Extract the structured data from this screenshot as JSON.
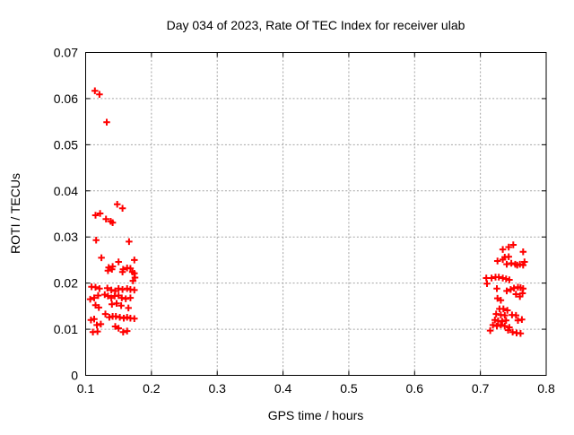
{
  "figure": {
    "background": "#ffffff"
  },
  "chart_data": {
    "type": "scatter",
    "title": "Day 034 of 2023, Rate Of TEC Index for receiver ulab",
    "xlabel": "GPS time / hours",
    "ylabel": "ROTI / TECUs",
    "xlim": [
      0.1,
      0.8
    ],
    "ylim": [
      0,
      0.07
    ],
    "xticks": [
      0.1,
      0.2,
      0.3,
      0.4,
      0.5,
      0.6,
      0.7,
      0.8
    ],
    "yticks": [
      0,
      0.01,
      0.02,
      0.03,
      0.04,
      0.05,
      0.06,
      0.07
    ],
    "grid": true,
    "legend": "none",
    "marker_shape": "plus",
    "marker_color": "#ff0000",
    "grid_color": "#a4a4a4",
    "axis_color": "#000000",
    "points": [
      [
        0.114,
        0.0617
      ],
      [
        0.121,
        0.0609
      ],
      [
        0.132,
        0.0549
      ],
      [
        0.148,
        0.0371
      ],
      [
        0.156,
        0.0362
      ],
      [
        0.115,
        0.0347
      ],
      [
        0.122,
        0.0351
      ],
      [
        0.131,
        0.0339
      ],
      [
        0.138,
        0.0334
      ],
      [
        0.141,
        0.0331
      ],
      [
        0.116,
        0.0293
      ],
      [
        0.166,
        0.029
      ],
      [
        0.124,
        0.0255
      ],
      [
        0.15,
        0.0246
      ],
      [
        0.135,
        0.0234
      ],
      [
        0.141,
        0.0236
      ],
      [
        0.174,
        0.025
      ],
      [
        0.157,
        0.023
      ],
      [
        0.163,
        0.0233
      ],
      [
        0.168,
        0.0232
      ],
      [
        0.134,
        0.0227
      ],
      [
        0.14,
        0.023
      ],
      [
        0.156,
        0.0224
      ],
      [
        0.171,
        0.0224
      ],
      [
        0.174,
        0.0221
      ],
      [
        0.175,
        0.0212
      ],
      [
        0.172,
        0.0205
      ],
      [
        0.109,
        0.0192
      ],
      [
        0.115,
        0.0191
      ],
      [
        0.121,
        0.0188
      ],
      [
        0.133,
        0.0189
      ],
      [
        0.139,
        0.0185
      ],
      [
        0.145,
        0.0183
      ],
      [
        0.15,
        0.0188
      ],
      [
        0.156,
        0.0186
      ],
      [
        0.163,
        0.0188
      ],
      [
        0.168,
        0.0186
      ],
      [
        0.174,
        0.0185
      ],
      [
        0.107,
        0.0165
      ],
      [
        0.113,
        0.0168
      ],
      [
        0.119,
        0.0173
      ],
      [
        0.129,
        0.0175
      ],
      [
        0.134,
        0.0172
      ],
      [
        0.139,
        0.0168
      ],
      [
        0.144,
        0.0172
      ],
      [
        0.15,
        0.0173
      ],
      [
        0.155,
        0.0168
      ],
      [
        0.161,
        0.0166
      ],
      [
        0.168,
        0.0168
      ],
      [
        0.115,
        0.0152
      ],
      [
        0.12,
        0.0147
      ],
      [
        0.14,
        0.0154
      ],
      [
        0.147,
        0.0156
      ],
      [
        0.154,
        0.0151
      ],
      [
        0.165,
        0.0146
      ],
      [
        0.13,
        0.0133
      ],
      [
        0.136,
        0.0126
      ],
      [
        0.141,
        0.0128
      ],
      [
        0.146,
        0.0128
      ],
      [
        0.152,
        0.0126
      ],
      [
        0.158,
        0.0124
      ],
      [
        0.163,
        0.0126
      ],
      [
        0.168,
        0.0124
      ],
      [
        0.174,
        0.0123
      ],
      [
        0.108,
        0.012
      ],
      [
        0.113,
        0.0122
      ],
      [
        0.117,
        0.0109
      ],
      [
        0.123,
        0.0111
      ],
      [
        0.145,
        0.0106
      ],
      [
        0.15,
        0.0102
      ],
      [
        0.111,
        0.0094
      ],
      [
        0.118,
        0.0095
      ],
      [
        0.157,
        0.0094
      ],
      [
        0.163,
        0.0096
      ],
      [
        0.75,
        0.0283
      ],
      [
        0.743,
        0.0278
      ],
      [
        0.734,
        0.0273
      ],
      [
        0.765,
        0.0268
      ],
      [
        0.737,
        0.0256
      ],
      [
        0.743,
        0.0257
      ],
      [
        0.726,
        0.0248
      ],
      [
        0.734,
        0.0251
      ],
      [
        0.74,
        0.0241
      ],
      [
        0.747,
        0.0243
      ],
      [
        0.753,
        0.0241
      ],
      [
        0.756,
        0.0239
      ],
      [
        0.76,
        0.0241
      ],
      [
        0.765,
        0.0239
      ],
      [
        0.767,
        0.0246
      ],
      [
        0.709,
        0.0211
      ],
      [
        0.717,
        0.0211
      ],
      [
        0.723,
        0.0213
      ],
      [
        0.728,
        0.0213
      ],
      [
        0.734,
        0.0211
      ],
      [
        0.739,
        0.0209
      ],
      [
        0.744,
        0.0207
      ],
      [
        0.71,
        0.0199
      ],
      [
        0.725,
        0.0188
      ],
      [
        0.74,
        0.0183
      ],
      [
        0.746,
        0.0186
      ],
      [
        0.751,
        0.0189
      ],
      [
        0.757,
        0.0191
      ],
      [
        0.761,
        0.019
      ],
      [
        0.765,
        0.0188
      ],
      [
        0.754,
        0.0176
      ],
      [
        0.764,
        0.0178
      ],
      [
        0.76,
        0.0171
      ],
      [
        0.726,
        0.0167
      ],
      [
        0.731,
        0.0163
      ],
      [
        0.729,
        0.0144
      ],
      [
        0.735,
        0.0144
      ],
      [
        0.741,
        0.0141
      ],
      [
        0.724,
        0.0133
      ],
      [
        0.731,
        0.0131
      ],
      [
        0.737,
        0.013
      ],
      [
        0.748,
        0.0131
      ],
      [
        0.754,
        0.013
      ],
      [
        0.722,
        0.012
      ],
      [
        0.727,
        0.0118
      ],
      [
        0.733,
        0.0117
      ],
      [
        0.739,
        0.0119
      ],
      [
        0.757,
        0.0119
      ],
      [
        0.763,
        0.0121
      ],
      [
        0.719,
        0.0109
      ],
      [
        0.725,
        0.0107
      ],
      [
        0.731,
        0.0109
      ],
      [
        0.737,
        0.0107
      ],
      [
        0.744,
        0.0104
      ],
      [
        0.715,
        0.0097
      ],
      [
        0.742,
        0.0098
      ],
      [
        0.749,
        0.0094
      ],
      [
        0.755,
        0.0092
      ],
      [
        0.761,
        0.0091
      ]
    ]
  }
}
